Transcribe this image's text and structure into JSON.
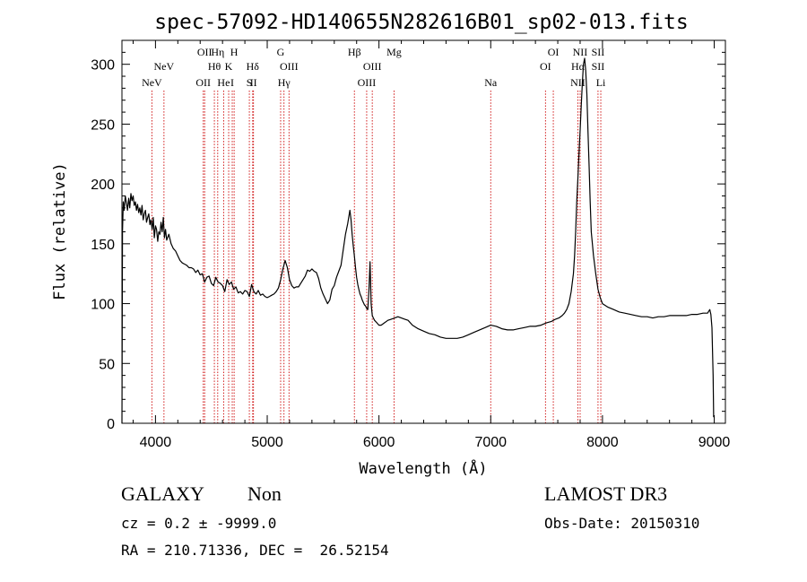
{
  "chart_data": {
    "type": "line",
    "title": "spec-57092-HD140655N282616B01_sp02-013.fits",
    "xlabel": "Wavelength (Å)",
    "ylabel": "Flux (relative)",
    "xlim": [
      3700,
      9100
    ],
    "ylim": [
      0,
      320
    ],
    "xticks": [
      {
        "value": 4000,
        "label": "4000"
      },
      {
        "value": 5000,
        "label": "5000"
      },
      {
        "value": 6000,
        "label": "6000"
      },
      {
        "value": 7000,
        "label": "7000"
      },
      {
        "value": 8000,
        "label": "8000"
      },
      {
        "value": 9000,
        "label": "9000"
      }
    ],
    "yticks": [
      {
        "value": 0,
        "label": "0"
      },
      {
        "value": 50,
        "label": "50"
      },
      {
        "value": 100,
        "label": "100"
      },
      {
        "value": 150,
        "label": "150"
      },
      {
        "value": 200,
        "label": "200"
      },
      {
        "value": 250,
        "label": "250"
      },
      {
        "value": 300,
        "label": "300"
      }
    ],
    "grid": false,
    "line_color": "#000000",
    "marker_color": "#cc0000",
    "series": [
      {
        "x": [
          3700,
          3705,
          3712,
          3720,
          3730,
          3740,
          3750,
          3760,
          3770,
          3780,
          3790,
          3800,
          3810,
          3820,
          3830,
          3840,
          3850,
          3860,
          3870,
          3880,
          3890,
          3900,
          3910,
          3920,
          3930,
          3940,
          3950,
          3960,
          3970,
          3980,
          3990,
          4000,
          4010,
          4020,
          4030,
          4040,
          4050,
          4060,
          4070,
          4080,
          4090,
          4100,
          4120,
          4140,
          4160,
          4180,
          4200,
          4220,
          4240,
          4260,
          4280,
          4300,
          4320,
          4340,
          4360,
          4380,
          4400,
          4420,
          4440,
          4460,
          4480,
          4500,
          4520,
          4540,
          4560,
          4580,
          4600,
          4620,
          4640,
          4660,
          4680,
          4700,
          4720,
          4740,
          4760,
          4780,
          4800,
          4820,
          4840,
          4860,
          4880,
          4900,
          4920,
          4940,
          4960,
          4980,
          5000,
          5020,
          5040,
          5060,
          5080,
          5100,
          5120,
          5140,
          5160,
          5180,
          5200,
          5220,
          5240,
          5260,
          5280,
          5300,
          5320,
          5340,
          5360,
          5380,
          5400,
          5420,
          5440,
          5460,
          5480,
          5500,
          5520,
          5540,
          5560,
          5580,
          5600,
          5620,
          5640,
          5660,
          5680,
          5700,
          5720,
          5740,
          5750,
          5760,
          5770,
          5780,
          5790,
          5800,
          5810,
          5820,
          5830,
          5840,
          5850,
          5860,
          5870,
          5880,
          5890,
          5900,
          5910,
          5920,
          5930,
          5935,
          5940,
          5950,
          5960,
          5980,
          6000,
          6020,
          6050,
          6080,
          6110,
          6140,
          6170,
          6200,
          6230,
          6260,
          6300,
          6350,
          6400,
          6450,
          6500,
          6550,
          6600,
          6650,
          6700,
          6750,
          6800,
          6850,
          6900,
          6950,
          7000,
          7050,
          7100,
          7150,
          7200,
          7250,
          7300,
          7350,
          7400,
          7450,
          7500,
          7540,
          7580,
          7610,
          7640,
          7660,
          7680,
          7700,
          7720,
          7740,
          7750,
          7760,
          7770,
          7780,
          7790,
          7800,
          7810,
          7820,
          7830,
          7840,
          7850,
          7860,
          7870,
          7880,
          7890,
          7900,
          7920,
          7940,
          7960,
          7980,
          8000,
          8050,
          8100,
          8150,
          8200,
          8250,
          8300,
          8350,
          8400,
          8450,
          8500,
          8550,
          8600,
          8650,
          8700,
          8750,
          8800,
          8850,
          8900,
          8940,
          8960,
          8970,
          8980,
          8990,
          8995
        ],
        "y": [
          0,
          160,
          185,
          178,
          190,
          184,
          178,
          188,
          180,
          192,
          186,
          190,
          182,
          185,
          178,
          183,
          176,
          180,
          174,
          182,
          170,
          175,
          178,
          168,
          172,
          175,
          166,
          170,
          162,
          172,
          155,
          165,
          162,
          152,
          160,
          158,
          168,
          160,
          172,
          155,
          162,
          153,
          158,
          150,
          146,
          144,
          140,
          136,
          134,
          133,
          132,
          130,
          130,
          129,
          126,
          128,
          124,
          125,
          118,
          122,
          123,
          117,
          115,
          122,
          118,
          117,
          115,
          110,
          120,
          116,
          118,
          112,
          114,
          109,
          110,
          108,
          111,
          110,
          106,
          116,
          110,
          108,
          111,
          107,
          108,
          106,
          105,
          106,
          107,
          108,
          110,
          113,
          120,
          129,
          136,
          130,
          120,
          115,
          113,
          114,
          114,
          117,
          120,
          123,
          128,
          127,
          129,
          127,
          126,
          121,
          113,
          108,
          104,
          100,
          103,
          112,
          115,
          122,
          127,
          132,
          145,
          158,
          167,
          178,
          170,
          158,
          148,
          140,
          130,
          122,
          116,
          112,
          108,
          106,
          103,
          101,
          99,
          98,
          96,
          95,
          110,
          135,
          100,
          95,
          90,
          88,
          86,
          84,
          82,
          82,
          84,
          86,
          87,
          88,
          89,
          88,
          87,
          86,
          82,
          79,
          77,
          75,
          74,
          72,
          71,
          71,
          71,
          72,
          74,
          76,
          78,
          80,
          82,
          81,
          79,
          78,
          78,
          79,
          80,
          81,
          81,
          82,
          84,
          85,
          87,
          88,
          90,
          92,
          95,
          100,
          110,
          125,
          140,
          160,
          185,
          205,
          225,
          245,
          265,
          285,
          300,
          305,
          295,
          275,
          245,
          215,
          185,
          160,
          140,
          125,
          112,
          105,
          100,
          97,
          95,
          93,
          92,
          91,
          90,
          89,
          89,
          88,
          89,
          89,
          90,
          90,
          90,
          90,
          91,
          91,
          92,
          92,
          95,
          91,
          80,
          40,
          5
        ]
      }
    ],
    "line_markers": [
      {
        "x": 3968,
        "label": "NeV",
        "row": 3
      },
      {
        "x": 4076,
        "label": "NeV",
        "row": 2
      },
      {
        "x": 4428,
        "label": "OII",
        "row": 3
      },
      {
        "x": 4440,
        "label": "OII",
        "row": 1
      },
      {
        "x": 4527,
        "label": "Hθ",
        "row": 2
      },
      {
        "x": 4557,
        "label": "Hη",
        "row": 1
      },
      {
        "x": 4610,
        "label": "He",
        "row": 3
      },
      {
        "x": 4655,
        "label": "K",
        "row": 2
      },
      {
        "x": 4687,
        "label": "I",
        "row": 3
      },
      {
        "x": 4704,
        "label": "H",
        "row": 1
      },
      {
        "x": 4840,
        "label": "S",
        "row": 3
      },
      {
        "x": 4870,
        "label": "Hδ",
        "row": 2
      },
      {
        "x": 4877,
        "label": "II",
        "row": 3
      },
      {
        "x": 5120,
        "label": "G",
        "row": 1
      },
      {
        "x": 5150,
        "label": "Hγ",
        "row": 3
      },
      {
        "x": 5195,
        "label": "OIII",
        "row": 2
      },
      {
        "x": 5780,
        "label": "Hβ",
        "row": 1
      },
      {
        "x": 5890,
        "label": "OIII",
        "row": 3
      },
      {
        "x": 5940,
        "label": "OIII",
        "row": 2
      },
      {
        "x": 6135,
        "label": "Mg",
        "row": 1
      },
      {
        "x": 7000,
        "label": "Na",
        "row": 3
      },
      {
        "x": 7490,
        "label": "OI",
        "row": 2
      },
      {
        "x": 7560,
        "label": "OI",
        "row": 1
      },
      {
        "x": 7780,
        "label": "Hα",
        "row": 2
      },
      {
        "x": 7780,
        "label": "NII",
        "row": 3
      },
      {
        "x": 7800,
        "label": "NII",
        "row": 1
      },
      {
        "x": 7960,
        "label": "SII",
        "row": 1
      },
      {
        "x": 7960,
        "label": "SII",
        "row": 2
      },
      {
        "x": 7985,
        "label": "Li",
        "row": 3
      }
    ]
  },
  "info": {
    "class_label": "GALAXY",
    "subclass_label": "Non",
    "survey_label": "LAMOST DR3",
    "cz_text": "cz = 0.2 ± -9999.0",
    "obsdate_text": "Obs-Date: 20150310",
    "radec_text": "RA = 210.71336, DEC =  26.52154"
  }
}
